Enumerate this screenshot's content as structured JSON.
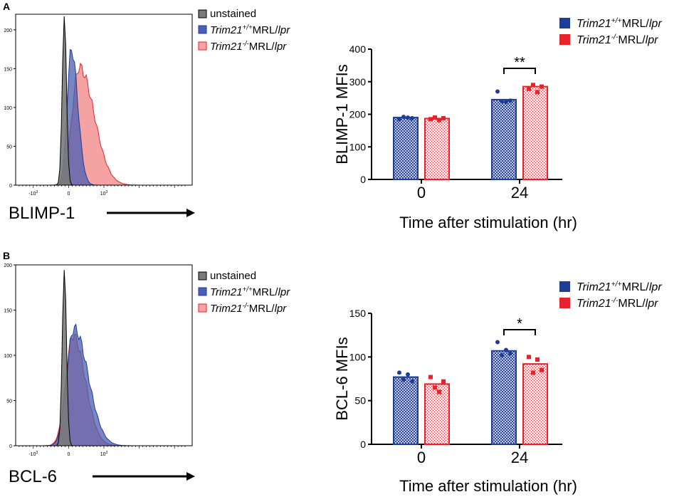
{
  "colors": {
    "blue": "#1f3c96",
    "blue_fill": "#4a5fb3",
    "red": "#e8222a",
    "red_fill": "#f07a7a",
    "gray": "#7a7a7a",
    "black": "#000000"
  },
  "chart_data": [
    {
      "panel": "A",
      "type": "histogram",
      "ylim": [
        0,
        220
      ],
      "yticks": [
        "0",
        "50",
        "100",
        "150",
        "200"
      ],
      "xtick_labels": [
        "-10",
        "0",
        "10"
      ],
      "xtick_exps": [
        "3",
        "",
        "3"
      ],
      "xlabel": "BLIMP-1",
      "legend": [
        {
          "italic": "Trim21",
          "sup": "+/+",
          "rest": "MRL/",
          "italic2": "lpr",
          "plain": ""
        },
        {
          "italic": "Trim21",
          "sup": "-/-",
          "rest": "MRL/",
          "italic2": "lpr",
          "plain": ""
        }
      ],
      "legend_unstained": "unstained",
      "series": [
        {
          "name": "unstained",
          "peak_x": -0.12,
          "peak_y": 218
        },
        {
          "name": "Trim21+/+MRL/lpr",
          "peak_x": 0.08,
          "peak_y": 175
        },
        {
          "name": "Trim21-/-MRL/lpr",
          "peak_x": 0.3,
          "peak_y": 152
        }
      ]
    },
    {
      "panel": "A",
      "type": "bar",
      "categories": [
        "0",
        "24"
      ],
      "ylim": [
        0,
        400
      ],
      "yticks": [
        "0",
        "100",
        "200",
        "300",
        "400"
      ],
      "ylabel": "BLIMP-1 MFIs",
      "xlabel": "Time after stimulation (hr)",
      "series": [
        {
          "name": "Trim21+/+MRL/lpr",
          "values": [
            190,
            245
          ],
          "points": [
            [
              185,
              192,
              190,
              188
            ],
            [
              270,
              240,
              238,
              242
            ]
          ]
        },
        {
          "name": "Trim21-/-MRL/lpr",
          "values": [
            187,
            285
          ],
          "points": [
            [
              185,
              190,
              182,
              188
            ],
            [
              278,
              290,
              268,
              285
            ]
          ]
        }
      ],
      "significance": {
        "group": "24",
        "label": "**"
      }
    },
    {
      "panel": "B",
      "type": "histogram",
      "ylim": [
        0,
        200
      ],
      "yticks": [
        "0",
        "50",
        "100",
        "150",
        "200"
      ],
      "xtick_labels": [
        "-10",
        "0",
        "10"
      ],
      "xtick_exps": [
        "3",
        "",
        "3"
      ],
      "xlabel": "BCL-6",
      "legend_unstained": "unstained",
      "series": [
        {
          "name": "unstained",
          "peak_x": -0.12,
          "peak_y": 195
        },
        {
          "name": "Trim21+/+MRL/lpr",
          "peak_x": 0.15,
          "peak_y": 130
        },
        {
          "name": "Trim21-/-MRL/lpr",
          "peak_x": 0.12,
          "peak_y": 122
        }
      ]
    },
    {
      "panel": "B",
      "type": "bar",
      "categories": [
        "0",
        "24"
      ],
      "ylim": [
        0,
        150
      ],
      "yticks": [
        "0",
        "50",
        "100",
        "150"
      ],
      "ylabel": "BCL-6 MFIs",
      "xlabel": "Time after stimulation (hr)",
      "series": [
        {
          "name": "Trim21+/+MRL/lpr",
          "values": [
            77,
            107
          ],
          "points": [
            [
              82,
              74,
              80,
              72
            ],
            [
              117,
              102,
              108,
              104
            ]
          ]
        },
        {
          "name": "Trim21-/-MRL/lpr",
          "values": [
            69,
            92
          ],
          "points": [
            [
              77,
              65,
              60,
              72
            ],
            [
              100,
              82,
              97,
              85
            ]
          ]
        }
      ],
      "significance": {
        "group": "24",
        "label": "*"
      }
    }
  ],
  "labels": {
    "panel_a": "A",
    "panel_b": "B",
    "trim": "Trim21",
    "sup_wt": "+/+",
    "sup_ko": "-/-",
    "mrl": "MRL/",
    "lpr": "lpr",
    "unstained": "unstained"
  }
}
